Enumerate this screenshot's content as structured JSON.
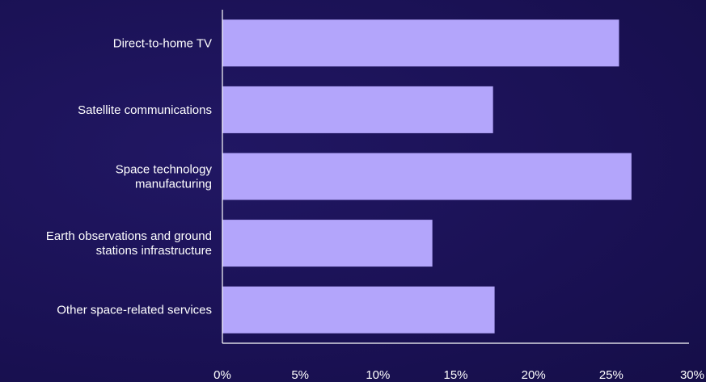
{
  "chart_data": {
    "type": "bar",
    "orientation": "horizontal",
    "categories": [
      [
        "Direct-to-home TV"
      ],
      [
        "Satellite communications"
      ],
      [
        "Space technology",
        "manufacturing"
      ],
      [
        "Earth observations and ground",
        "stations infrastructure"
      ],
      [
        "Other space-related services"
      ]
    ],
    "values": [
      25.5,
      17.4,
      26.3,
      13.5,
      17.5
    ],
    "xlim": [
      0,
      30
    ],
    "xticks": [
      "0%",
      "5%",
      "10%",
      "15%",
      "20%",
      "25%",
      "30%"
    ],
    "title": "",
    "xlabel": "",
    "ylabel": "",
    "grid": false,
    "bar_color": "#b3a5fb",
    "axis_color": "#ffffff"
  }
}
